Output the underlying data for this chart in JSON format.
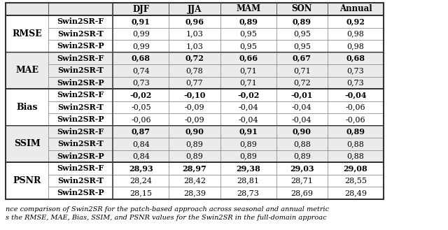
{
  "col_headers": [
    "",
    "",
    "DJF",
    "JJA",
    "MAM",
    "SON",
    "Annual"
  ],
  "metrics": [
    "RMSE",
    "MAE",
    "Bias",
    "SSIM",
    "PSNR"
  ],
  "models": [
    "Swin2SR-F",
    "Swin2SR-T",
    "Swin2SR-P"
  ],
  "data": {
    "RMSE": {
      "Swin2SR-F": [
        "0,91",
        "0,96",
        "0,89",
        "0,89",
        "0,92"
      ],
      "Swin2SR-T": [
        "0,99",
        "1,03",
        "0,95",
        "0,95",
        "0,98"
      ],
      "Swin2SR-P": [
        "0,99",
        "1,03",
        "0,95",
        "0,95",
        "0,98"
      ]
    },
    "MAE": {
      "Swin2SR-F": [
        "0,68",
        "0,72",
        "0,66",
        "0,67",
        "0,68"
      ],
      "Swin2SR-T": [
        "0,74",
        "0,78",
        "0,71",
        "0,71",
        "0,73"
      ],
      "Swin2SR-P": [
        "0,73",
        "0,77",
        "0,71",
        "0,72",
        "0,73"
      ]
    },
    "Bias": {
      "Swin2SR-F": [
        "-0,02",
        "-0,10",
        "-0,02",
        "-0,01",
        "-0,04"
      ],
      "Swin2SR-T": [
        "-0,05",
        "-0,09",
        "-0,04",
        "-0,04",
        "-0,06"
      ],
      "Swin2SR-P": [
        "-0,06",
        "-0,09",
        "-0,04",
        "-0,04",
        "-0,06"
      ]
    },
    "SSIM": {
      "Swin2SR-F": [
        "0,87",
        "0,90",
        "0,91",
        "0,90",
        "0,89"
      ],
      "Swin2SR-T": [
        "0,84",
        "0,89",
        "0,89",
        "0,88",
        "0,88"
      ],
      "Swin2SR-P": [
        "0,84",
        "0,89",
        "0,89",
        "0,89",
        "0,88"
      ]
    },
    "PSNR": {
      "Swin2SR-F": [
        "28,93",
        "28,97",
        "29,38",
        "29,03",
        "29,08"
      ],
      "Swin2SR-T": [
        "28,24",
        "28,42",
        "28,81",
        "28,71",
        "28,55"
      ],
      "Swin2SR-P": [
        "28,15",
        "28,39",
        "28,73",
        "28,69",
        "28,49"
      ]
    }
  },
  "metric_bg": {
    "RMSE": "#ffffff",
    "MAE": "#ebebeb",
    "Bias": "#ffffff",
    "SSIM": "#ebebeb",
    "PSNR": "#ffffff"
  },
  "header_bg": "#e8e8e8",
  "caption_line1": "nce comparison of Swin2SR for the patch-based approach across seasonal and annual metric",
  "caption_line2": "s the RMSE, MAE, Bias, SSIM, and PSNR values for the Swin2SR in the full-domain approac"
}
